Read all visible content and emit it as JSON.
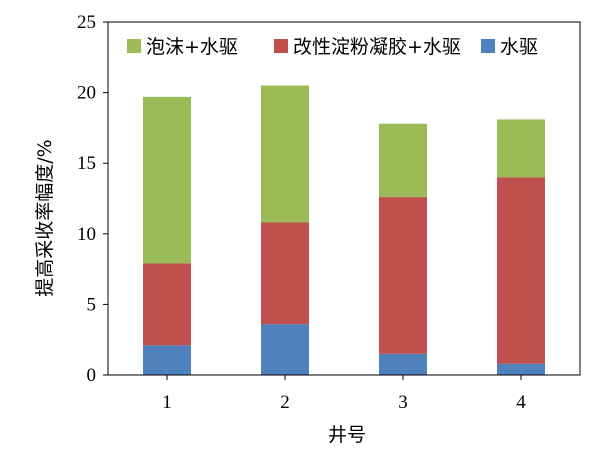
{
  "chart_data": {
    "type": "bar",
    "stacked": true,
    "categories": [
      "1",
      "2",
      "3",
      "4"
    ],
    "xlabel": "井号",
    "ylabel": "提高采收率幅度/%",
    "ylim": [
      0,
      25
    ],
    "yticks": [
      0,
      5,
      10,
      15,
      20,
      25
    ],
    "grid": false,
    "legend_position": "top",
    "series": [
      {
        "name": "水驱",
        "color": "#4f81bd",
        "values": [
          2.1,
          3.6,
          1.5,
          0.8
        ]
      },
      {
        "name": "改性淀粉凝胶+水驱",
        "color": "#c0504d",
        "values": [
          5.8,
          7.2,
          11.1,
          13.2
        ]
      },
      {
        "name": "泡沫+水驱",
        "color": "#9bbb59",
        "values": [
          11.8,
          9.7,
          5.2,
          4.1
        ]
      }
    ],
    "legend_order": [
      2,
      1,
      0
    ]
  }
}
